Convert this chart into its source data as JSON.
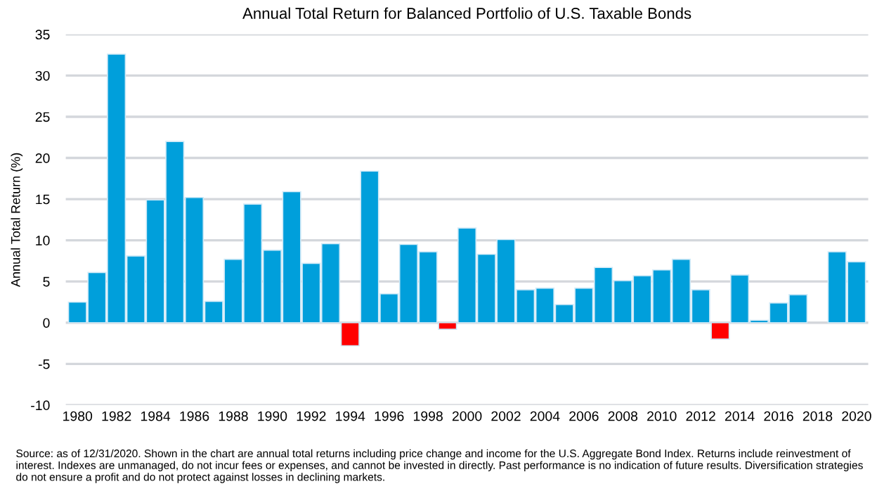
{
  "chart_data": {
    "type": "bar",
    "title": "Annual Total Return for Balanced Portfolio of U.S. Taxable Bonds",
    "ylabel": "Annual Total Return (%)",
    "categories": [
      "1980",
      null,
      "1982",
      null,
      "1984",
      null,
      "1986",
      null,
      "1988",
      null,
      "1990",
      null,
      "1992",
      null,
      "1994",
      null,
      "1996",
      null,
      "1998",
      null,
      "2000",
      null,
      "2002",
      null,
      "2004",
      null,
      "2006",
      null,
      "2008",
      null,
      "2010",
      null,
      "2012",
      null,
      "2014",
      null,
      "2016",
      null,
      "2018",
      null,
      "2020"
    ],
    "values": [
      2.5,
      6.1,
      32.6,
      8.1,
      14.9,
      22.0,
      15.2,
      2.6,
      7.7,
      14.4,
      8.8,
      15.9,
      7.2,
      9.6,
      -2.8,
      18.4,
      3.5,
      9.5,
      8.6,
      -0.8,
      11.5,
      8.3,
      10.1,
      4.0,
      4.2,
      2.2,
      4.2,
      6.7,
      5.1,
      5.7,
      6.4,
      7.7,
      4.0,
      -2.0,
      5.8,
      0.3,
      2.4,
      3.4,
      null,
      8.6,
      7.4
    ],
    "colors": [
      "#009fdb",
      "#009fdb",
      "#009fdb",
      "#009fdb",
      "#009fdb",
      "#009fdb",
      "#009fdb",
      "#009fdb",
      "#009fdb",
      "#009fdb",
      "#009fdb",
      "#009fdb",
      "#009fdb",
      "#009fdb",
      "#ff0000",
      "#009fdb",
      "#009fdb",
      "#009fdb",
      "#009fdb",
      "#ff0000",
      "#009fdb",
      "#009fdb",
      "#009fdb",
      "#009fdb",
      "#009fdb",
      "#009fdb",
      "#009fdb",
      "#009fdb",
      "#009fdb",
      "#009fdb",
      "#009fdb",
      "#009fdb",
      "#009fdb",
      "#ff0000",
      "#009fdb",
      "#009fdb",
      "#009fdb",
      "#009fdb",
      "#009fdb",
      "#009fdb",
      "#009fdb"
    ],
    "ylim": [
      -10,
      35
    ],
    "yticks": [
      -10,
      -5,
      0,
      5,
      10,
      15,
      20,
      25,
      30,
      35
    ],
    "grid": "y",
    "annotations": [
      "Source: as of 12/31/2020. Shown in the chart are annual total returns including price change and income for the U.S. Aggregate Bond Index. Returns include reinvestment of interest. Indexes are unmanaged, do not incur fees or expenses, and cannot be invested in directly.",
      "Past performance is no indication of future results. Diversification strategies do not ensure a profit and do not protect against losses in declining markets."
    ]
  }
}
